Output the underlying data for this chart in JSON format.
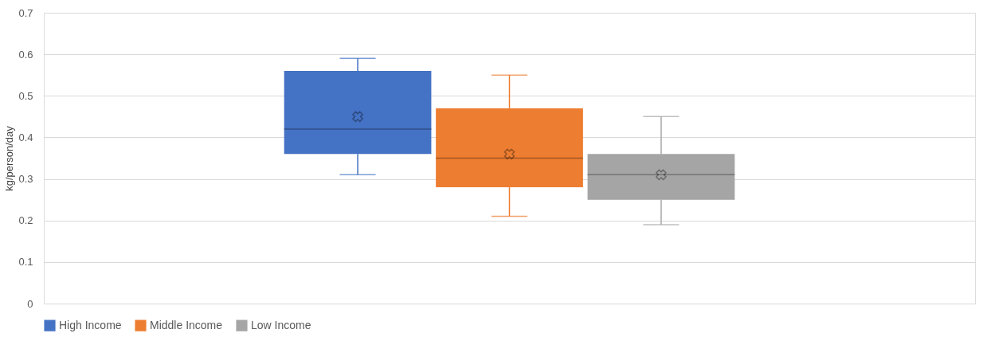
{
  "chart_data": {
    "type": "box",
    "ylabel": "kg/person/day",
    "categories": [
      null
    ],
    "series": [
      {
        "name": "High Income",
        "color": "#4472c4",
        "boxes": [
          {
            "low": 0.31,
            "q1": 0.36,
            "median": 0.42,
            "q3": 0.56,
            "high": 0.59,
            "mean": 0.45
          }
        ]
      },
      {
        "name": "Middle Income",
        "color": "#ed7d31",
        "boxes": [
          {
            "low": 0.21,
            "q1": 0.28,
            "median": 0.35,
            "q3": 0.47,
            "high": 0.55,
            "mean": 0.36
          }
        ]
      },
      {
        "name": "Low Income",
        "color": "#a5a5a5",
        "boxes": [
          {
            "low": 0.19,
            "q1": 0.25,
            "median": 0.31,
            "q3": 0.36,
            "high": 0.45,
            "mean": 0.31
          }
        ]
      }
    ],
    "ylim": [
      0,
      0.7
    ],
    "yticks": [
      0,
      0.1,
      0.2,
      0.3,
      0.4,
      0.5,
      0.6,
      0.7
    ],
    "grid": "y",
    "legend": "bottom"
  }
}
